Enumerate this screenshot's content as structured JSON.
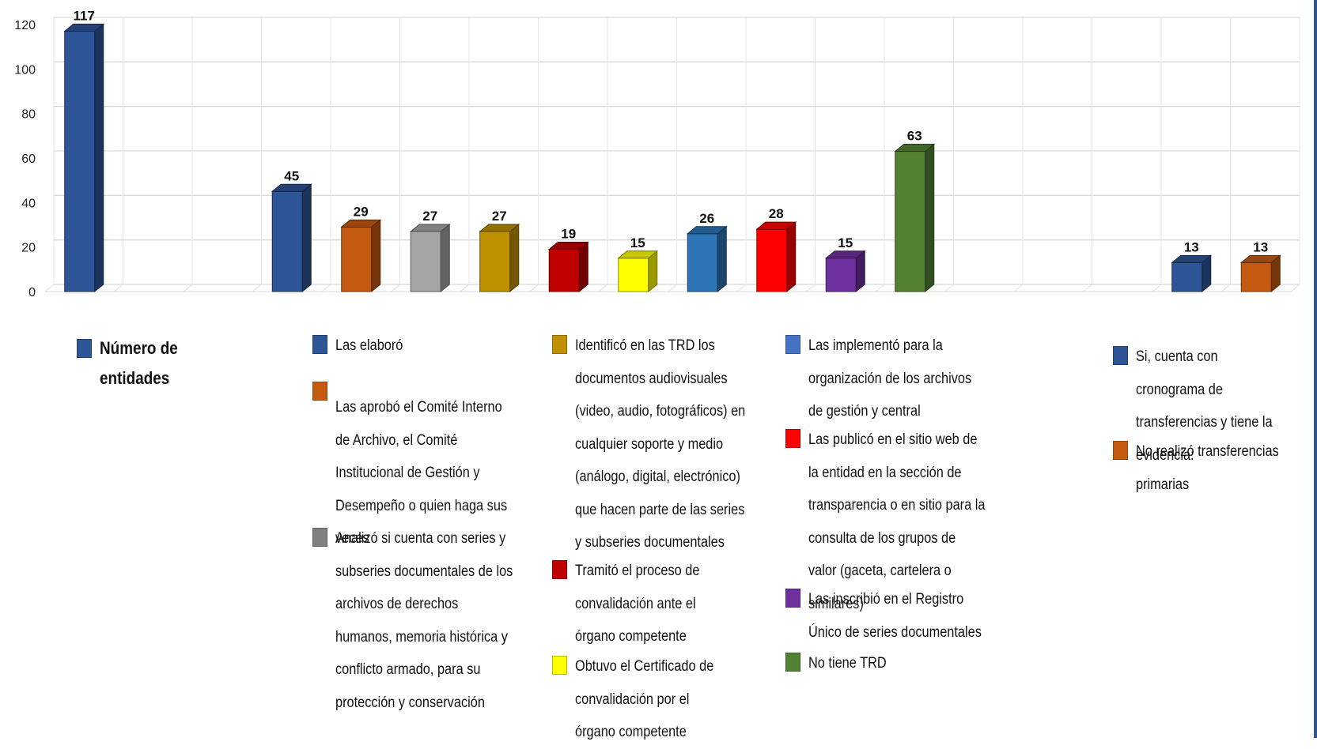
{
  "chart_data": {
    "type": "bar",
    "title": "",
    "xlabel": "",
    "ylabel": "",
    "ylim": [
      0,
      120
    ],
    "yticks": [
      0,
      20,
      40,
      60,
      80,
      100,
      120
    ],
    "grid": true,
    "legend_position": "bottom",
    "slots": 18,
    "bars": [
      {
        "slot": 0,
        "label": "Número de entidades",
        "value": 117,
        "color": "#2e5597"
      },
      {
        "slot": 3,
        "label": "Las elaboró",
        "value": 45,
        "color": "#2e5597"
      },
      {
        "slot": 4,
        "label": "Las aprobó el Comité Interno de Archivo, el Comité Institucional de Gestión y Desempeño o quien haga sus veces",
        "value": 29,
        "color": "#c55a11"
      },
      {
        "slot": 5,
        "label": "Analizó si cuenta con series y subseries documentales de los archivos de derechos humanos, memoria histórica y conflicto armado, para su protección y conservación",
        "value": 27,
        "color": "#a5a5a5"
      },
      {
        "slot": 6,
        "label": "Identificó en las TRD los documentos audiovisuales (video, audio, fotográficos) en cualquier soporte y medio (análogo, digital, electrónico) que hacen parte de las series y subseries documentales",
        "value": 27,
        "color": "#bf9000"
      },
      {
        "slot": 7,
        "label": "Tramitó el proceso de convalidación ante el órgano competente",
        "value": 19,
        "color": "#c00000"
      },
      {
        "slot": 8,
        "label": "Obtuvo el Certificado de convalidación por el órgano competente",
        "value": 15,
        "color": "#ffff00"
      },
      {
        "slot": 9,
        "label": "Las implementó para la organización de los archivos de gestión y central",
        "value": 26,
        "color": "#2e75b6"
      },
      {
        "slot": 10,
        "label": "Las publicó en el sitio web de la entidad en la sección de transparencia o en sitio para la consulta de los grupos de valor (gaceta, cartelera o similares)",
        "value": 28,
        "color": "#ff0000"
      },
      {
        "slot": 11,
        "label": "Las inscribió en el Registro Único de series documentales",
        "value": 15,
        "color": "#7030a0"
      },
      {
        "slot": 12,
        "label": "No tiene TRD",
        "value": 63,
        "color": "#548235"
      },
      {
        "slot": 16,
        "label": "Si, cuenta con cronograma de transferencias y tiene la evidencia:",
        "value": 13,
        "color": "#2e5597"
      },
      {
        "slot": 17,
        "label": "No realizó transferencias primarias",
        "value": 13,
        "color": "#c55a11"
      }
    ]
  },
  "legend": [
    {
      "text": "Número de entidades",
      "color": "#2e5597"
    },
    {
      "text": "Las elaboró",
      "color": "#2e5597"
    },
    {
      "text": "Las aprobó el Comité Interno de Archivo, el Comité Institucional de Gestión y Desempeño o quien haga sus veces",
      "color": "#c55a11"
    },
    {
      "text": "Analizó si cuenta con series y subseries documentales de los archivos de derechos humanos, memoria histórica y conflicto armado, para su protección y conservación",
      "color": "#808080"
    },
    {
      "text": "Identificó en las TRD los documentos audiovisuales (video, audio, fotográficos) en cualquier soporte y medio (análogo, digital, electrónico) que hacen parte de las series y subseries documentales",
      "color": "#bf9000"
    },
    {
      "text": "Tramitó el proceso de convalidación ante el órgano competente",
      "color": "#c00000"
    },
    {
      "text": "Obtuvo el Certificado de convalidación por el órgano competente",
      "color": "#ffff00"
    },
    {
      "text": "Las implementó para la organización de los archivos de gestión y central",
      "color": "#4472c4"
    },
    {
      "text": "Las publicó en el sitio web de la entidad en la sección de transparencia o en sitio para la consulta de los grupos de valor (gaceta, cartelera o similares)",
      "color": "#ff0000"
    },
    {
      "text": "Las inscribió en el Registro Único de series documentales",
      "color": "#7030a0"
    },
    {
      "text": "No tiene TRD",
      "color": "#548235"
    },
    {
      "text": "Si, cuenta con cronograma de transferencias y tiene la evidencia:",
      "color": "#2e5597"
    },
    {
      "text": "No realizó transferencias primarias",
      "color": "#c55a11"
    }
  ]
}
